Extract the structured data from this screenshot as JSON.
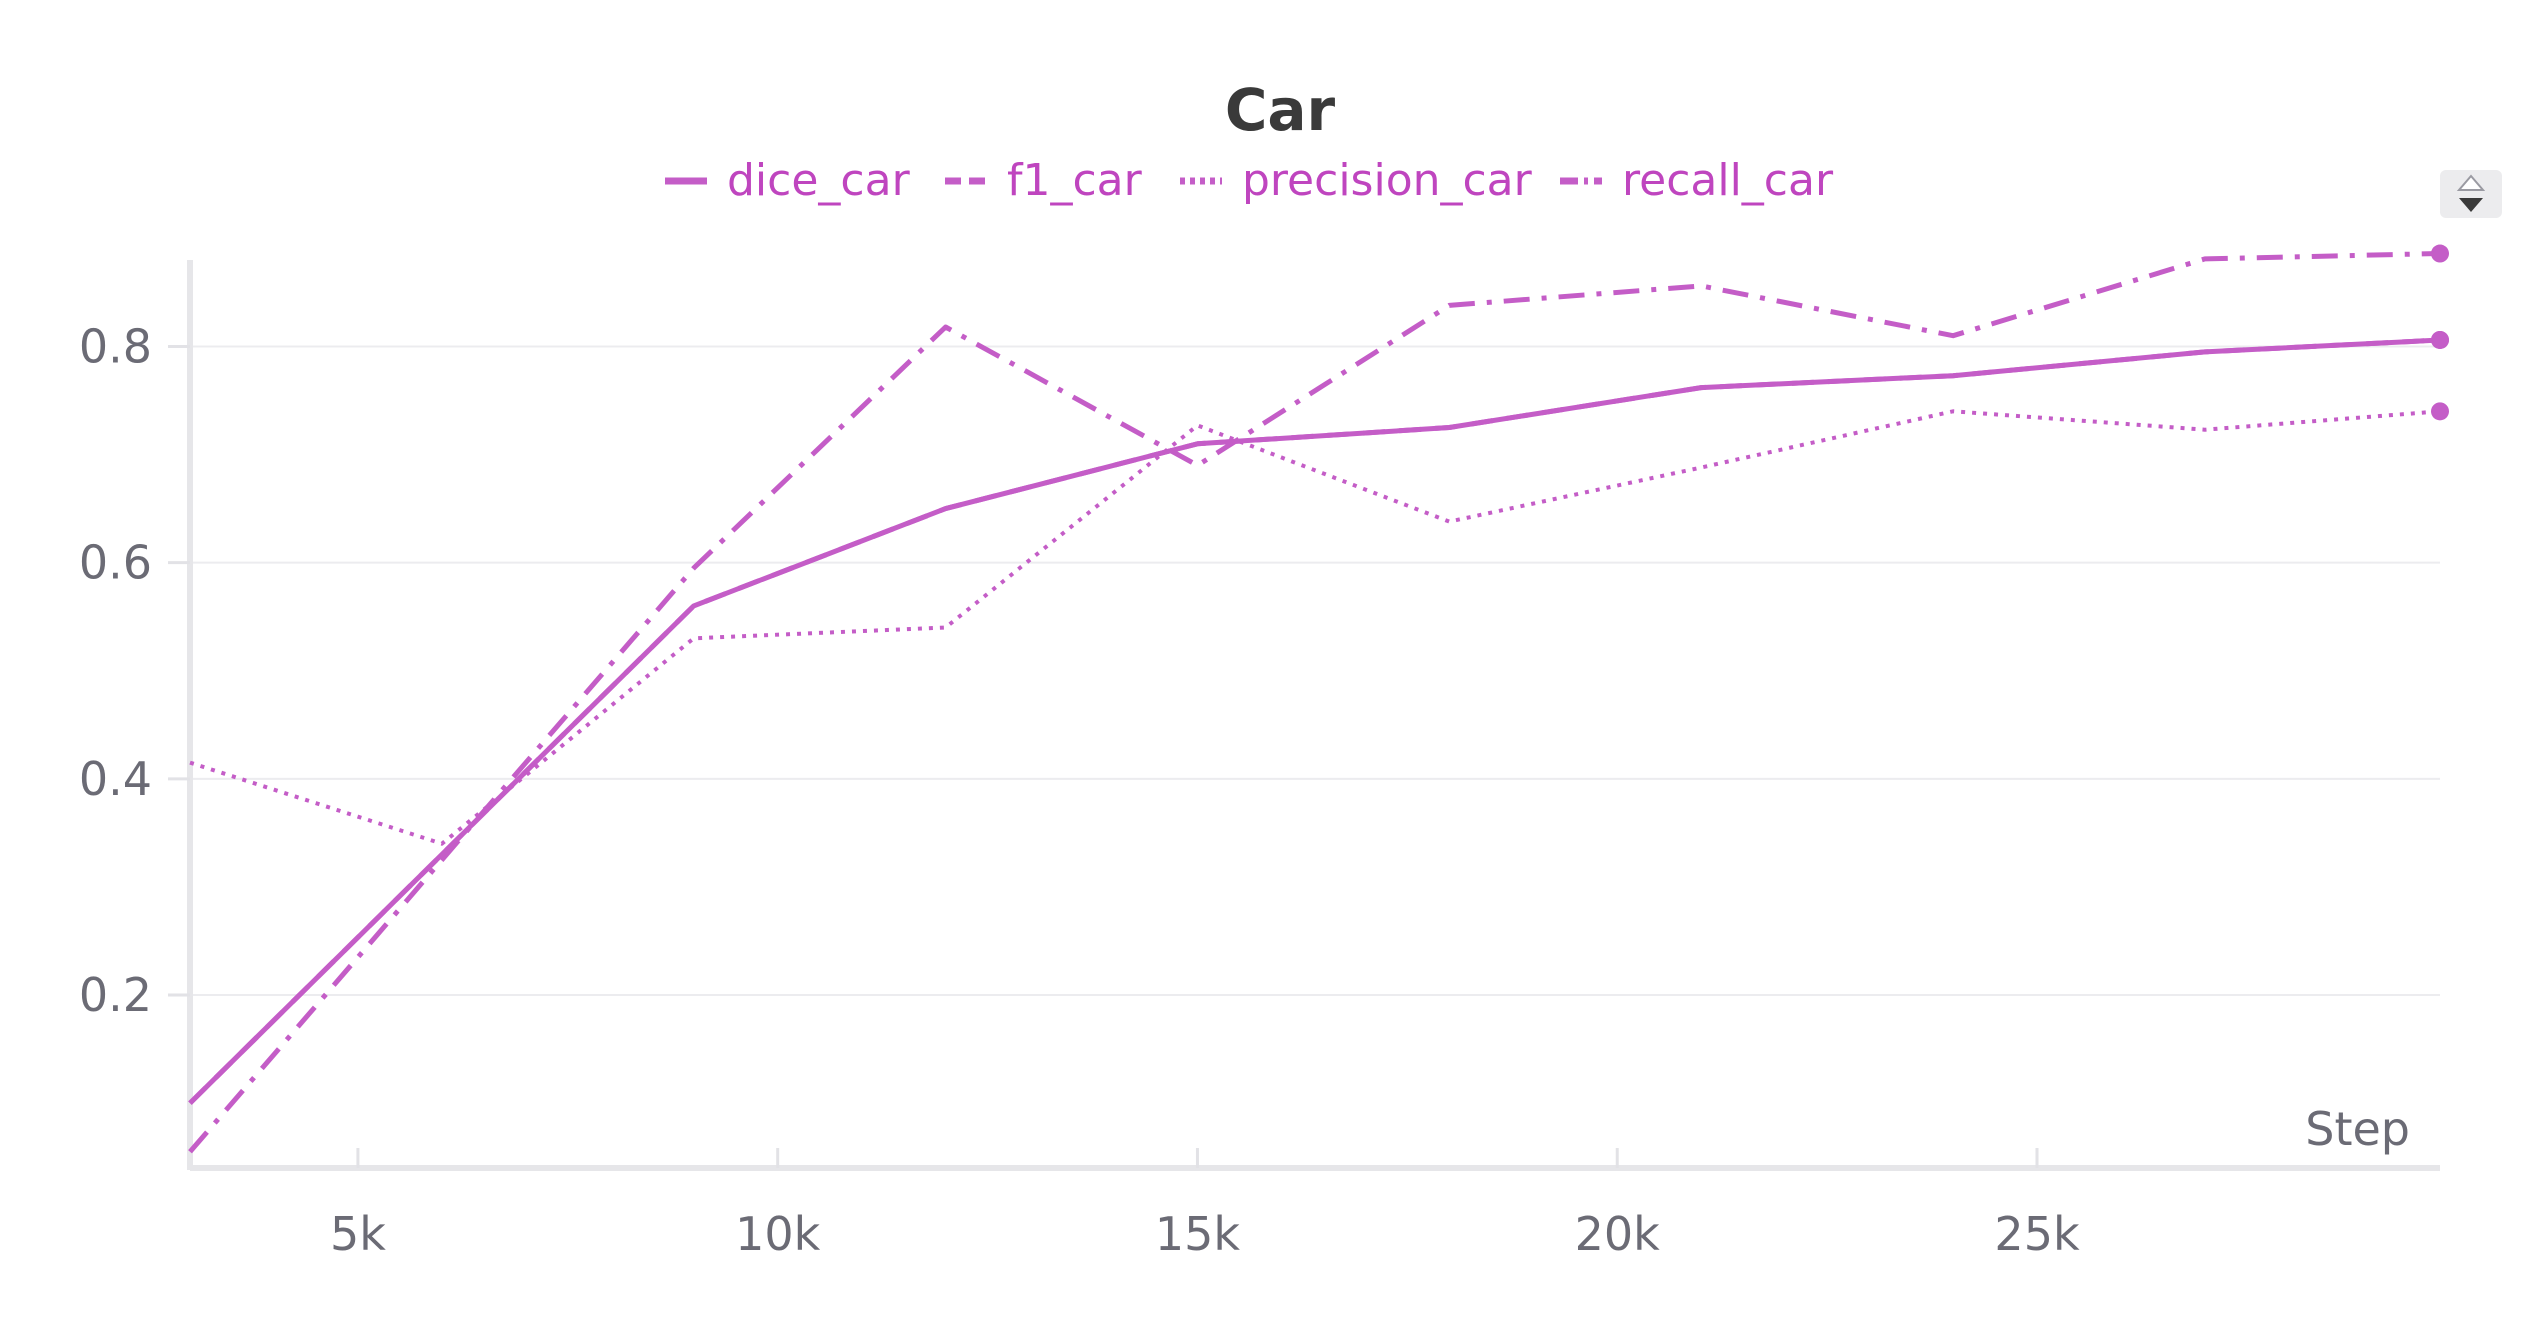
{
  "chart_data": {
    "type": "line",
    "title": "Car",
    "xlabel": "Step",
    "ylabel": "",
    "xlim": [
      3000,
      29800
    ],
    "ylim": [
      0.04,
      0.88
    ],
    "x_ticks": [
      {
        "value": 5000,
        "label": "5k"
      },
      {
        "value": 10000,
        "label": "10k"
      },
      {
        "value": 15000,
        "label": "15k"
      },
      {
        "value": 20000,
        "label": "20k"
      },
      {
        "value": 25000,
        "label": "25k"
      }
    ],
    "y_ticks": [
      {
        "value": 0.2,
        "label": "0.2"
      },
      {
        "value": 0.4,
        "label": "0.4"
      },
      {
        "value": 0.6,
        "label": "0.6"
      },
      {
        "value": 0.8,
        "label": "0.8"
      }
    ],
    "grid": true,
    "legend_position": "top-center",
    "line_color": "#c45dc7",
    "series": [
      {
        "name": "dice_car",
        "dash": "solid",
        "x": [
          3000,
          9000,
          12000,
          15000,
          18000,
          21000,
          24000,
          27000,
          29800
        ],
        "y": [
          0.1,
          0.56,
          0.65,
          0.71,
          0.725,
          0.762,
          0.773,
          0.795,
          0.806
        ]
      },
      {
        "name": "f1_car",
        "dash": "dashed",
        "x": [
          3000,
          9000,
          12000,
          15000,
          18000,
          21000,
          24000,
          27000,
          29800
        ],
        "y": [
          0.1,
          0.56,
          0.65,
          0.71,
          0.725,
          0.762,
          0.773,
          0.795,
          0.806
        ]
      },
      {
        "name": "precision_car",
        "dash": "dotted",
        "x": [
          3000,
          6000,
          9000,
          12000,
          15000,
          18000,
          21000,
          24000,
          27000,
          29800
        ],
        "y": [
          0.415,
          0.34,
          0.53,
          0.54,
          0.727,
          0.638,
          0.688,
          0.74,
          0.723,
          0.74
        ]
      },
      {
        "name": "recall_car",
        "dash": "dashdot",
        "x": [
          3000,
          9000,
          12000,
          15000,
          18000,
          21000,
          24000,
          27000,
          29800
        ],
        "y": [
          0.055,
          0.595,
          0.818,
          0.69,
          0.838,
          0.856,
          0.81,
          0.881,
          0.886
        ]
      }
    ]
  }
}
